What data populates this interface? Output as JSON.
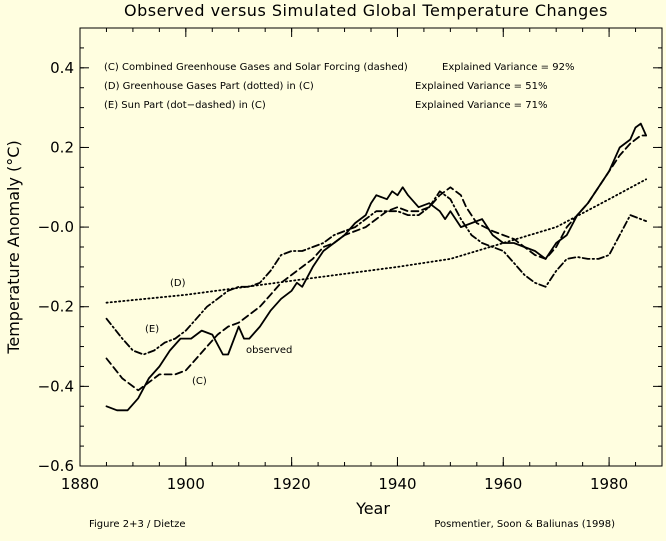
{
  "chart_data": {
    "type": "line",
    "title": "Observed versus Simulated Global Temperature Changes",
    "xlabel": "Year",
    "ylabel": "Temperature Anomaly (°C)",
    "xlim": [
      1880,
      1990
    ],
    "ylim": [
      -0.6,
      0.5
    ],
    "xticks": [
      1880,
      1900,
      1920,
      1940,
      1960,
      1980
    ],
    "yticks": [
      0.4,
      0.2,
      0.0,
      -0.2,
      -0.4,
      -0.6
    ],
    "ytick_labels": [
      "0.4",
      "0.2",
      "−0.0",
      "−0.2",
      "−0.4",
      "−0.6"
    ],
    "legend": [
      {
        "text": "(C) Combined Greenhouse Gases and Solar Forcing (dashed)",
        "variance": "Explained Variance = 92%"
      },
      {
        "text": "(D) Greenhouse Gases Part (dotted) in (C)",
        "variance": "Explained Variance = 51%"
      },
      {
        "text": "(E) Sun Part (dot−dashed) in (C)",
        "variance": "Explained Variance = 71%"
      }
    ],
    "annotations": {
      "D": "(D)",
      "E": "(E)",
      "C": "(C)",
      "observed": "observed"
    },
    "footer_left": "Figure 2+3 / Dietze",
    "footer_right": "Posmentier, Soon & Baliunas (1998)",
    "series": [
      {
        "name": "observed",
        "style": "solid",
        "x": [
          1885,
          1887,
          1889,
          1891,
          1893,
          1895,
          1897,
          1899,
          1901,
          1903,
          1905,
          1907,
          1908,
          1910,
          1911,
          1912,
          1914,
          1916,
          1918,
          1920,
          1921,
          1922,
          1924,
          1926,
          1928,
          1930,
          1932,
          1934,
          1935,
          1936,
          1938,
          1939,
          1940,
          1941,
          1942,
          1944,
          1946,
          1948,
          1949,
          1950,
          1952,
          1954,
          1956,
          1958,
          1960,
          1962,
          1964,
          1966,
          1968,
          1970,
          1972,
          1974,
          1976,
          1978,
          1980,
          1982,
          1984,
          1985,
          1986,
          1987
        ],
        "y": [
          -0.45,
          -0.46,
          -0.46,
          -0.43,
          -0.38,
          -0.35,
          -0.31,
          -0.28,
          -0.28,
          -0.26,
          -0.27,
          -0.32,
          -0.32,
          -0.25,
          -0.28,
          -0.28,
          -0.25,
          -0.21,
          -0.18,
          -0.16,
          -0.14,
          -0.15,
          -0.1,
          -0.06,
          -0.04,
          -0.02,
          0.01,
          0.03,
          0.06,
          0.08,
          0.07,
          0.09,
          0.08,
          0.1,
          0.08,
          0.05,
          0.06,
          0.04,
          0.02,
          0.04,
          0.0,
          0.01,
          0.02,
          -0.02,
          -0.04,
          -0.04,
          -0.05,
          -0.06,
          -0.08,
          -0.04,
          -0.02,
          0.03,
          0.06,
          0.1,
          0.14,
          0.2,
          0.22,
          0.25,
          0.26,
          0.23
        ]
      },
      {
        "name": "(C) combined",
        "style": "dashed",
        "x": [
          1885,
          1888,
          1891,
          1893,
          1895,
          1898,
          1900,
          1902,
          1904,
          1906,
          1908,
          1910,
          1912,
          1914,
          1916,
          1918,
          1920,
          1922,
          1924,
          1926,
          1928,
          1930,
          1932,
          1934,
          1936,
          1938,
          1940,
          1942,
          1944,
          1946,
          1948,
          1950,
          1952,
          1953,
          1955,
          1958,
          1960,
          1962,
          1964,
          1966,
          1968,
          1970,
          1972,
          1974,
          1976,
          1978,
          1980,
          1982,
          1984,
          1986,
          1987
        ],
        "y": [
          -0.33,
          -0.38,
          -0.41,
          -0.39,
          -0.37,
          -0.37,
          -0.36,
          -0.33,
          -0.3,
          -0.27,
          -0.25,
          -0.24,
          -0.22,
          -0.2,
          -0.17,
          -0.14,
          -0.12,
          -0.1,
          -0.08,
          -0.05,
          -0.04,
          -0.02,
          -0.01,
          0.0,
          0.02,
          0.04,
          0.05,
          0.04,
          0.04,
          0.05,
          0.08,
          0.1,
          0.08,
          0.05,
          0.01,
          -0.01,
          -0.02,
          -0.03,
          -0.05,
          -0.07,
          -0.08,
          -0.05,
          0.0,
          0.03,
          0.06,
          0.1,
          0.14,
          0.18,
          0.21,
          0.23,
          0.23
        ]
      },
      {
        "name": "(D) greenhouse",
        "style": "dotted",
        "x": [
          1885,
          1900,
          1920,
          1940,
          1950,
          1960,
          1970,
          1980,
          1987
        ],
        "y": [
          -0.19,
          -0.17,
          -0.135,
          -0.1,
          -0.08,
          -0.04,
          0.0,
          0.07,
          0.12
        ]
      },
      {
        "name": "(E) sun",
        "style": "dashdot",
        "x": [
          1885,
          1888,
          1890,
          1892,
          1894,
          1896,
          1898,
          1900,
          1902,
          1904,
          1906,
          1908,
          1910,
          1912,
          1914,
          1916,
          1918,
          1920,
          1922,
          1924,
          1926,
          1928,
          1930,
          1932,
          1934,
          1936,
          1938,
          1940,
          1942,
          1944,
          1946,
          1948,
          1950,
          1952,
          1954,
          1956,
          1958,
          1960,
          1962,
          1964,
          1966,
          1968,
          1970,
          1972,
          1974,
          1976,
          1978,
          1980,
          1982,
          1984,
          1986,
          1987
        ],
        "y": [
          -0.23,
          -0.28,
          -0.31,
          -0.32,
          -0.31,
          -0.29,
          -0.28,
          -0.26,
          -0.23,
          -0.2,
          -0.18,
          -0.16,
          -0.15,
          -0.15,
          -0.14,
          -0.11,
          -0.07,
          -0.06,
          -0.06,
          -0.05,
          -0.04,
          -0.02,
          -0.01,
          0.0,
          0.02,
          0.04,
          0.04,
          0.04,
          0.03,
          0.03,
          0.05,
          0.09,
          0.07,
          0.02,
          -0.02,
          -0.04,
          -0.05,
          -0.06,
          -0.09,
          -0.12,
          -0.14,
          -0.15,
          -0.11,
          -0.08,
          -0.075,
          -0.08,
          -0.08,
          -0.07,
          -0.02,
          0.03,
          0.02,
          0.015
        ]
      }
    ]
  }
}
